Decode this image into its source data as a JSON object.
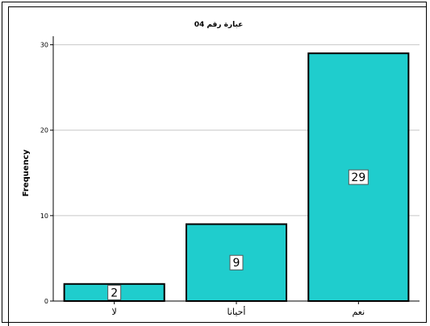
{
  "chart_data": {
    "type": "bar",
    "title": "عبارة رقم 04",
    "xlabel": "",
    "ylabel": "Frequency",
    "categories": [
      "لا",
      "أحيانا",
      "نعم"
    ],
    "values": [
      2,
      9,
      29
    ],
    "ylim": [
      0,
      31
    ],
    "yticks": [
      0,
      10,
      20,
      30
    ],
    "grid": true,
    "bar_color": "#1FCDCD",
    "data_labels": [
      "2",
      "9",
      "29"
    ]
  }
}
